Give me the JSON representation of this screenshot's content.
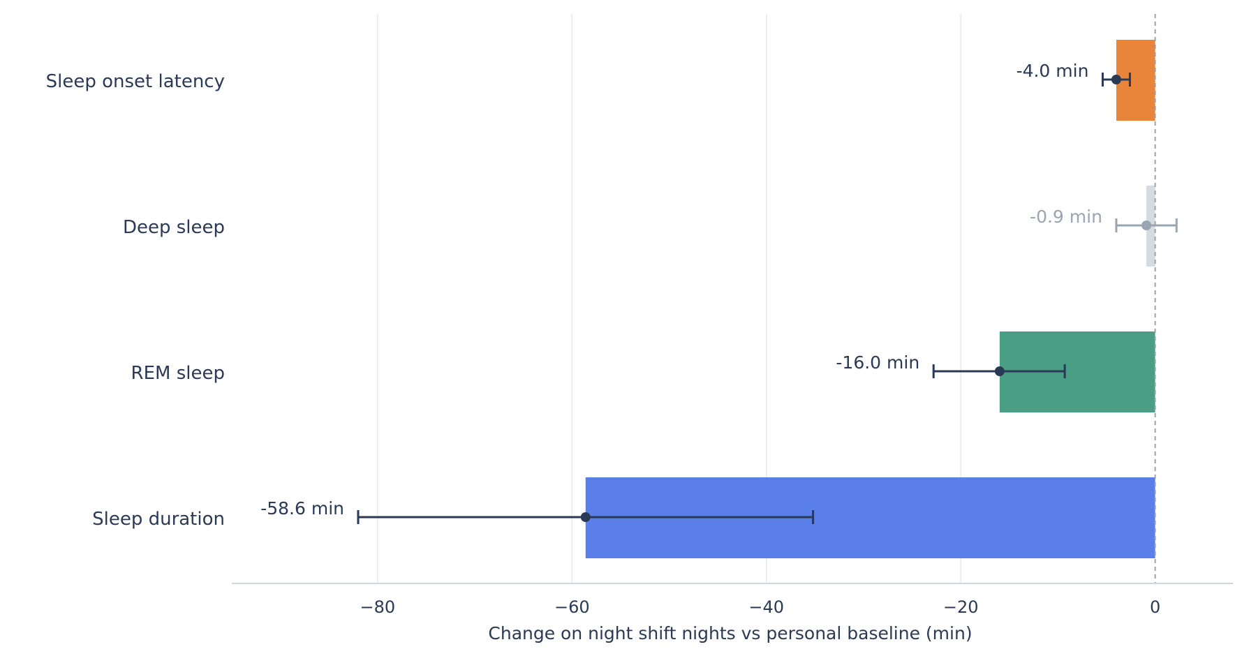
{
  "chart_data": {
    "type": "bar",
    "orientation": "horizontal",
    "categories": [
      "Sleep onset latency",
      "Deep sleep",
      "REM sleep",
      "Sleep duration"
    ],
    "values": [
      -4.0,
      -0.9,
      -16.0,
      -58.6
    ],
    "ci_low": [
      -5.4,
      -4.0,
      -22.8,
      -82.0
    ],
    "ci_high": [
      -2.6,
      2.2,
      -9.3,
      -35.2
    ],
    "bar_colors": [
      "#e8853b",
      "#d5dbe0",
      "#4a9e84",
      "#5b7fe8"
    ],
    "label_colors": [
      "#2a3a55",
      "#9aa4b2",
      "#2a3a55",
      "#2a3a55"
    ],
    "data_labels": [
      "-4.0 min",
      "-0.9 min",
      "-16.0 min",
      "-58.6 min"
    ],
    "significant": [
      true,
      false,
      true,
      true
    ],
    "xlabel": "Change on night shift nights vs personal baseline (min)",
    "xticks": [
      -80,
      -60,
      -40,
      -20,
      0
    ],
    "xtick_labels": [
      "−80",
      "−60",
      "−40",
      "−20",
      "0"
    ],
    "xlim": [
      -95,
      8
    ],
    "reference_line": 0,
    "grid": "vertical",
    "legend": "none"
  }
}
